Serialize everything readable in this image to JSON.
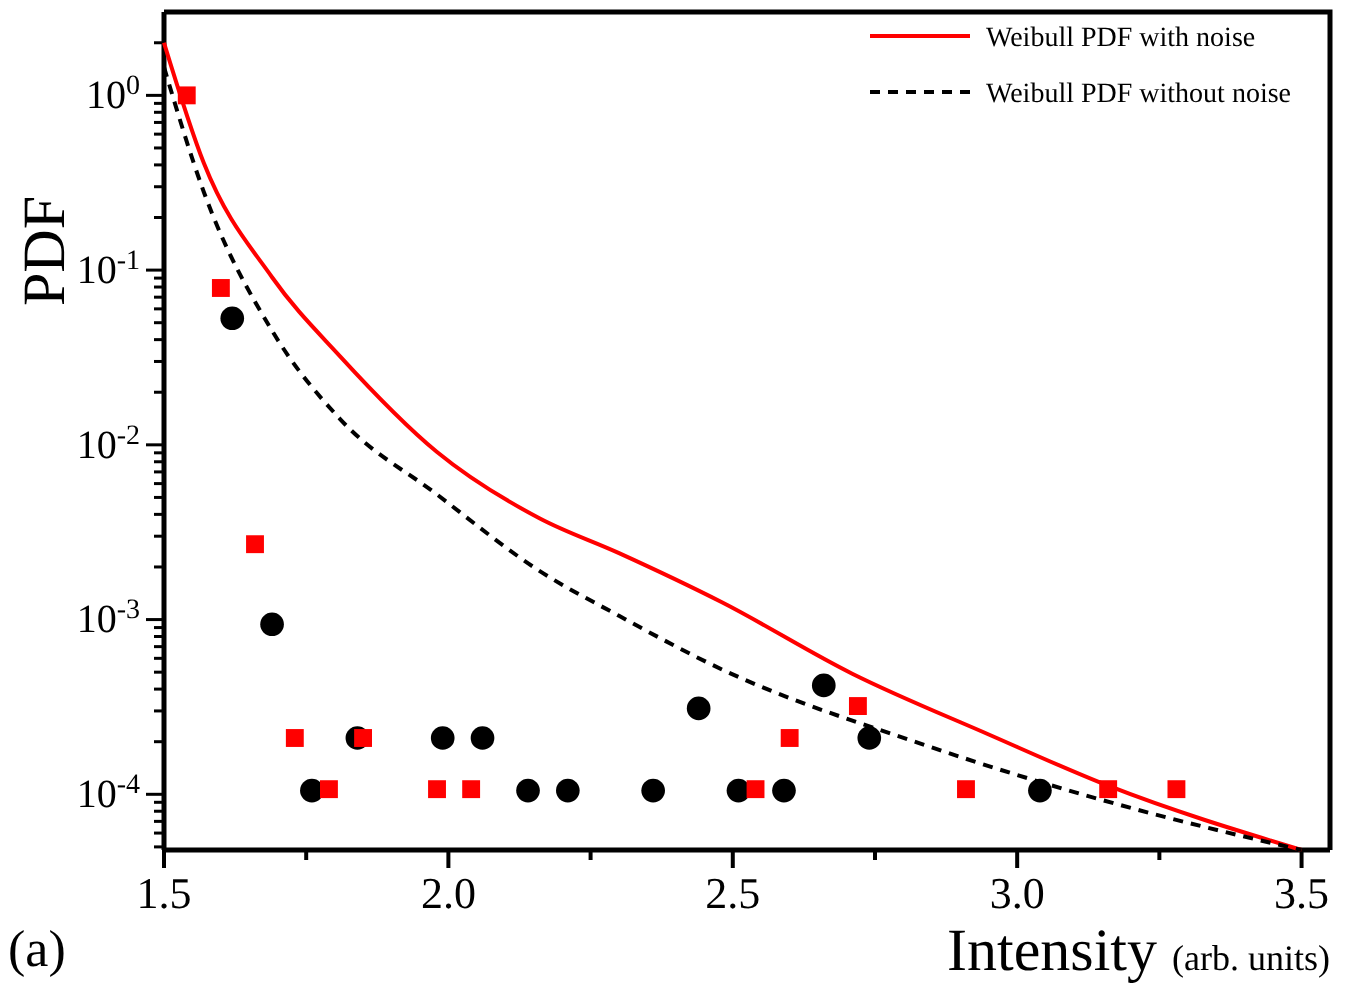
{
  "chart_data": {
    "type": "scatter",
    "xlabel": "Intensity (arb. units)",
    "ylabel": "PDF",
    "log": "y",
    "xlim": [
      1.5,
      3.55
    ],
    "ylim": [
      4.8e-05,
      3
    ],
    "xticks": [
      1.5,
      {
        "value": 1.75,
        "label": null
      },
      "2.0",
      {
        "value": 2.25,
        "label": null
      },
      2.5,
      {
        "value": 2.75,
        "label": null
      },
      "3.0",
      {
        "value": 3.25,
        "label": null
      },
      3.5
    ],
    "yticks": [
      {
        "value": 5e-05,
        "label": null
      },
      {
        "value": 6e-05,
        "label": null
      },
      {
        "value": 7e-05,
        "label": null
      },
      {
        "value": 8e-05,
        "label": null
      },
      {
        "value": 9e-05,
        "label": null
      },
      {
        "value": 0.0001,
        "label": "10$^{-4}$"
      },
      {
        "value": 0.0002,
        "label": null
      },
      {
        "value": 0.0003,
        "label": null
      },
      {
        "value": 0.0004,
        "label": null
      },
      {
        "value": 0.0005,
        "label": null
      },
      {
        "value": 0.0006,
        "label": null
      },
      {
        "value": 0.0007,
        "label": null
      },
      {
        "value": 0.0008,
        "label": null
      },
      {
        "value": 0.0009,
        "label": null
      },
      {
        "value": 0.001,
        "label": "10$^{-3}$"
      },
      {
        "value": 0.002,
        "label": null
      },
      {
        "value": 0.003,
        "label": null
      },
      {
        "value": 0.004,
        "label": null
      },
      {
        "value": 0.005,
        "label": null
      },
      {
        "value": 0.006,
        "label": null
      },
      {
        "value": 0.007,
        "label": null
      },
      {
        "value": 0.008,
        "label": null
      },
      {
        "value": 0.009,
        "label": null
      },
      {
        "value": 0.01,
        "label": "10$^{-2}$"
      },
      {
        "value": 0.02,
        "label": null
      },
      {
        "value": 0.03,
        "label": null
      },
      {
        "value": 0.04,
        "label": null
      },
      {
        "value": 0.05,
        "label": null
      },
      {
        "value": 0.06,
        "label": null
      },
      {
        "value": 0.07,
        "label": null
      },
      {
        "value": 0.08,
        "label": null
      },
      {
        "value": 0.09,
        "label": null
      },
      {
        "value": 0.1,
        "label": "10$^{-1}$"
      },
      {
        "value": 0.2,
        "label": null
      },
      {
        "value": 0.3,
        "label": null
      },
      {
        "value": 0.4,
        "label": null
      },
      {
        "value": 0.5,
        "label": null
      },
      {
        "value": 0.6,
        "label": null
      },
      {
        "value": 0.7,
        "label": null
      },
      {
        "value": 0.8,
        "label": null
      },
      {
        "value": 0.9,
        "label": null
      },
      {
        "value": 1,
        "label": "10$^{0}$"
      },
      {
        "value": 2,
        "label": null
      }
    ],
    "grid": false,
    "legend": "top right",
    "annotations": [
      "(a)"
    ],
    "series": [
      {
        "name": "Weibull PDF with noise",
        "type": "line",
        "color": "#ff0000",
        "line_style": "solid",
        "x": [
          1.5,
          1.57,
          1.69,
          1.81,
          1.98,
          2.16,
          2.3,
          2.48,
          2.71,
          2.95,
          3.16,
          3.5
        ],
        "values": [
          2.0,
          0.41,
          0.091,
          0.032,
          0.0091,
          0.0038,
          0.0024,
          0.00126,
          0.00049,
          0.00022,
          0.000112,
          4.8e-05
        ]
      },
      {
        "name": "Weibull PDF without noise",
        "type": "line",
        "color": "#000000",
        "line_style": "dashed",
        "x": [
          1.5,
          1.57,
          1.69,
          1.81,
          1.98,
          2.16,
          2.3,
          2.48,
          2.83,
          3.18,
          3.5
        ],
        "values": [
          1.45,
          0.28,
          0.045,
          0.014,
          0.0052,
          0.0019,
          0.00105,
          0.00052,
          0.000195,
          8.7e-05,
          4.8e-05
        ]
      },
      {
        "color": "#ff0000",
        "marker": "square",
        "x": [
          1.54,
          1.6,
          1.66,
          1.73,
          1.79,
          1.85,
          1.98,
          2.04,
          2.54,
          2.6,
          2.72,
          2.91,
          3.16,
          3.28
        ],
        "values": [
          1.0,
          0.079,
          0.0027,
          0.00021,
          0.000107,
          0.00021,
          0.000107,
          0.000107,
          0.000107,
          0.00021,
          0.00032,
          0.000107,
          0.000107,
          0.000107
        ]
      },
      {
        "color": "#000000",
        "marker": "circle",
        "x": [
          1.62,
          1.69,
          1.76,
          1.84,
          1.99,
          2.06,
          2.14,
          2.21,
          2.36,
          2.44,
          2.51,
          2.59,
          2.66,
          2.74,
          3.04
        ],
        "values": [
          0.053,
          0.00094,
          0.000105,
          0.00021,
          0.00021,
          0.00021,
          0.000105,
          0.000105,
          0.000105,
          0.00031,
          0.000105,
          0.000105,
          0.00042,
          0.00021,
          0.000105
        ]
      }
    ]
  }
}
